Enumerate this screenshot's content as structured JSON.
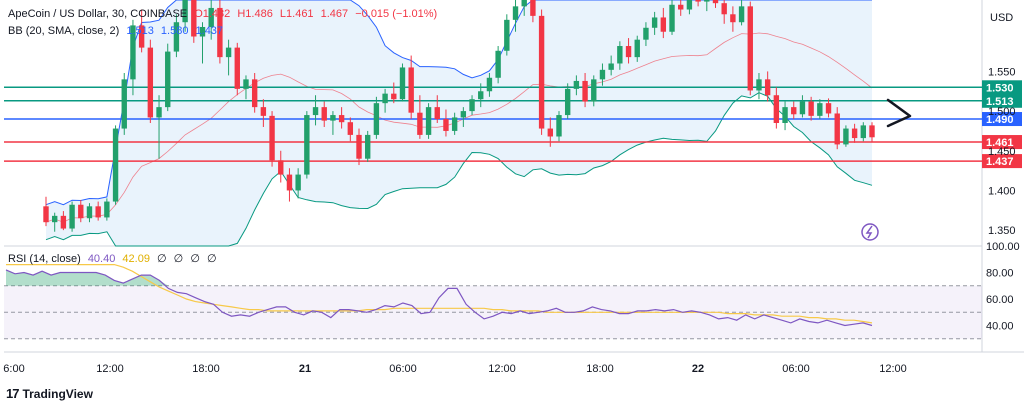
{
  "header": {
    "symbol": "ApeCoin / US Dollar, 30, COINBASE",
    "o": "O1.482",
    "h": "H1.486",
    "l": "L1.461",
    "c": "1.467",
    "change": "−0.015 (−1.01%)",
    "bb_label": "BB (20, SMA, close, 2)",
    "bb_values": [
      "1.513",
      "1.580",
      "1.437"
    ]
  },
  "rsi_header": {
    "label": "RSI (14, close)",
    "value": "40.40",
    "ma_value": "42.09",
    "empty": [
      "∅",
      "∅",
      "∅",
      "∅"
    ]
  },
  "currency_label": "USD",
  "brand": "TradingView",
  "colors": {
    "up": "#22a06b",
    "down": "#f23645",
    "bb_line": "#2962ff",
    "bb_fill": "#e3f0fb",
    "level_green": "#089981",
    "level_red": "#f23645",
    "level_blue": "#2962ff",
    "rsi_line": "#7e57c2",
    "rsi_ma": "#f7c948"
  },
  "chart_data": [
    {
      "type": "candlestick",
      "title": "ApeCoin / US Dollar, 30, COINBASE",
      "ylim": [
        1.33,
        1.64
      ],
      "y_ticks": [
        "1.550",
        "1.500",
        "1.450",
        "1.400",
        "1.350"
      ],
      "x_ticks": [
        "6:00",
        "12:00",
        "18:00",
        "21",
        "06:00",
        "12:00",
        "18:00",
        "22",
        "06:00",
        "12:00"
      ],
      "levels": [
        {
          "label": "1.530",
          "value": 1.53,
          "color": "#089981"
        },
        {
          "label": "1.513",
          "value": 1.513,
          "color": "#089981"
        },
        {
          "label": "1.490",
          "value": 1.49,
          "color": "#2962ff"
        },
        {
          "label": "1.461",
          "value": 1.461,
          "color": "#f23645"
        },
        {
          "label": "1.437",
          "value": 1.437,
          "color": "#f23645"
        }
      ],
      "candles": [
        [
          1.38,
          1.392,
          1.355,
          1.36
        ],
        [
          1.36,
          1.372,
          1.348,
          1.368
        ],
        [
          1.368,
          1.374,
          1.35,
          1.352
        ],
        [
          1.352,
          1.386,
          1.348,
          1.382
        ],
        [
          1.382,
          1.388,
          1.36,
          1.365
        ],
        [
          1.365,
          1.384,
          1.36,
          1.38
        ],
        [
          1.38,
          1.386,
          1.362,
          1.366
        ],
        [
          1.366,
          1.39,
          1.362,
          1.386
        ],
        [
          1.386,
          1.482,
          1.382,
          1.478
        ],
        [
          1.478,
          1.548,
          1.47,
          1.54
        ],
        [
          1.54,
          1.615,
          1.52,
          1.608
        ],
        [
          1.608,
          1.628,
          1.574,
          1.58
        ],
        [
          1.58,
          1.59,
          1.485,
          1.492
        ],
        [
          1.492,
          1.52,
          1.44,
          1.505
        ],
        [
          1.505,
          1.585,
          1.5,
          1.575
        ],
        [
          1.575,
          1.622,
          1.568,
          1.612
        ],
        [
          1.612,
          1.65,
          1.6,
          1.64
        ],
        [
          1.64,
          1.65,
          1.586,
          1.594
        ],
        [
          1.594,
          1.612,
          1.56,
          1.606
        ],
        [
          1.606,
          1.64,
          1.59,
          1.63
        ],
        [
          1.63,
          1.64,
          1.56,
          1.568
        ],
        [
          1.568,
          1.59,
          1.545,
          1.58
        ],
        [
          1.58,
          1.586,
          1.52,
          1.528
        ],
        [
          1.528,
          1.545,
          1.515,
          1.54
        ],
        [
          1.54,
          1.548,
          1.498,
          1.505
        ],
        [
          1.505,
          1.515,
          1.48,
          1.494
        ],
        [
          1.494,
          1.5,
          1.43,
          1.438
        ],
        [
          1.438,
          1.45,
          1.41,
          1.42
        ],
        [
          1.42,
          1.428,
          1.386,
          1.4
        ],
        [
          1.4,
          1.428,
          1.39,
          1.42
        ],
        [
          1.42,
          1.5,
          1.415,
          1.495
        ],
        [
          1.495,
          1.52,
          1.482,
          1.505
        ],
        [
          1.505,
          1.512,
          1.48,
          1.488
        ],
        [
          1.488,
          1.5,
          1.47,
          1.495
        ],
        [
          1.495,
          1.505,
          1.478,
          1.486
        ],
        [
          1.486,
          1.492,
          1.462,
          1.47
        ],
        [
          1.47,
          1.478,
          1.432,
          1.44
        ],
        [
          1.44,
          1.475,
          1.436,
          1.47
        ],
        [
          1.47,
          1.518,
          1.465,
          1.51
        ],
        [
          1.51,
          1.528,
          1.498,
          1.522
        ],
        [
          1.522,
          1.536,
          1.51,
          1.515
        ],
        [
          1.515,
          1.56,
          1.512,
          1.555
        ],
        [
          1.555,
          1.57,
          1.49,
          1.498
        ],
        [
          1.498,
          1.52,
          1.465,
          1.47
        ],
        [
          1.47,
          1.51,
          1.465,
          1.505
        ],
        [
          1.505,
          1.52,
          1.485,
          1.49
        ],
        [
          1.49,
          1.502,
          1.468,
          1.475
        ],
        [
          1.475,
          1.498,
          1.47,
          1.492
        ],
        [
          1.492,
          1.505,
          1.48,
          1.5
        ],
        [
          1.5,
          1.52,
          1.495,
          1.515
        ],
        [
          1.515,
          1.535,
          1.505,
          1.525
        ],
        [
          1.525,
          1.548,
          1.518,
          1.542
        ],
        [
          1.542,
          1.582,
          1.535,
          1.576
        ],
        [
          1.576,
          1.622,
          1.57,
          1.615
        ],
        [
          1.615,
          1.64,
          1.6,
          1.632
        ],
        [
          1.632,
          1.65,
          1.62,
          1.642
        ],
        [
          1.642,
          1.652,
          1.612,
          1.62
        ],
        [
          1.62,
          1.628,
          1.47,
          1.478
        ],
        [
          1.478,
          1.492,
          1.455,
          1.468
        ],
        [
          1.468,
          1.5,
          1.462,
          1.495
        ],
        [
          1.495,
          1.535,
          1.49,
          1.528
        ],
        [
          1.528,
          1.545,
          1.52,
          1.538
        ],
        [
          1.538,
          1.548,
          1.505,
          1.512
        ],
        [
          1.512,
          1.545,
          1.506,
          1.54
        ],
        [
          1.54,
          1.56,
          1.532,
          1.552
        ],
        [
          1.552,
          1.57,
          1.545,
          1.56
        ],
        [
          1.56,
          1.588,
          1.552,
          1.582
        ],
        [
          1.582,
          1.592,
          1.56,
          1.568
        ],
        [
          1.568,
          1.595,
          1.562,
          1.59
        ],
        [
          1.59,
          1.612,
          1.582,
          1.605
        ],
        [
          1.605,
          1.625,
          1.596,
          1.618
        ],
        [
          1.618,
          1.63,
          1.592,
          1.6
        ],
        [
          1.6,
          1.64,
          1.596,
          1.634
        ],
        [
          1.634,
          1.648,
          1.62,
          1.628
        ],
        [
          1.628,
          1.65,
          1.622,
          1.642
        ],
        [
          1.642,
          1.654,
          1.632,
          1.638
        ],
        [
          1.638,
          1.65,
          1.626,
          1.644
        ],
        [
          1.644,
          1.652,
          1.63,
          1.636
        ],
        [
          1.636,
          1.648,
          1.61,
          1.622
        ],
        [
          1.622,
          1.632,
          1.6,
          1.612
        ],
        [
          1.612,
          1.64,
          1.608,
          1.632
        ],
        [
          1.632,
          1.638,
          1.52,
          1.526
        ],
        [
          1.526,
          1.548,
          1.515,
          1.54
        ],
        [
          1.54,
          1.55,
          1.512,
          1.52
        ],
        [
          1.52,
          1.53,
          1.478,
          1.485
        ],
        [
          1.485,
          1.512,
          1.476,
          1.505
        ],
        [
          1.505,
          1.512,
          1.49,
          1.496
        ],
        [
          1.496,
          1.52,
          1.492,
          1.512
        ],
        [
          1.512,
          1.518,
          1.488,
          1.494
        ],
        [
          1.494,
          1.515,
          1.49,
          1.51
        ],
        [
          1.51,
          1.516,
          1.492,
          1.497
        ],
        [
          1.497,
          1.505,
          1.452,
          1.458
        ],
        [
          1.458,
          1.482,
          1.455,
          1.478
        ],
        [
          1.478,
          1.484,
          1.46,
          1.466
        ],
        [
          1.466,
          1.486,
          1.462,
          1.482
        ],
        [
          1.482,
          1.486,
          1.461,
          1.467
        ]
      ]
    },
    {
      "type": "line",
      "title": "RSI (14, close)",
      "ylim": [
        20,
        100
      ],
      "y_ticks": [
        "100.00",
        "80.00",
        "60.00",
        "40.00"
      ],
      "bands": [
        70,
        50,
        30
      ],
      "series": [
        {
          "name": "RSI",
          "values": [
            82,
            79,
            80,
            78,
            81,
            78,
            80,
            80,
            80,
            80,
            80,
            78,
            74,
            72,
            75,
            78,
            78,
            74,
            68,
            65,
            64,
            61,
            58,
            56,
            50,
            47,
            48,
            47,
            50,
            52,
            54,
            54,
            50,
            48,
            51,
            50,
            46,
            52,
            52,
            51,
            50,
            52,
            55,
            54,
            57,
            55,
            49,
            50,
            61,
            68,
            68,
            56,
            50,
            45,
            47,
            50,
            49,
            51,
            49,
            50,
            51,
            53,
            50,
            50,
            51,
            54,
            52,
            51,
            49,
            49,
            51,
            51,
            52,
            51,
            52,
            50,
            51,
            50,
            48,
            45,
            46,
            44,
            48,
            45,
            48,
            46,
            44,
            42,
            45,
            43,
            42,
            44,
            42,
            40,
            41,
            42,
            40
          ]
        },
        {
          "name": "RSI-based MA",
          "values": [
            86,
            86,
            86,
            86,
            86,
            86,
            86,
            86,
            86,
            86,
            86,
            86,
            86,
            84,
            81,
            77,
            73,
            69,
            66,
            63,
            60,
            58,
            57,
            56,
            55,
            54,
            53,
            52,
            52,
            51,
            51,
            51,
            51,
            51,
            51,
            51,
            51,
            51,
            51,
            51,
            52,
            52,
            52,
            53,
            53,
            53,
            53,
            53,
            53,
            53,
            53,
            53,
            53,
            53,
            52,
            52,
            51,
            51,
            51,
            51,
            50,
            50,
            50,
            50,
            50,
            50,
            50,
            50,
            50,
            50,
            50,
            50,
            50,
            50,
            50,
            50,
            50,
            50,
            50,
            50,
            49,
            49,
            49,
            48,
            48,
            48,
            47,
            47,
            47,
            46,
            46,
            45,
            45,
            44,
            44,
            43,
            42
          ]
        }
      ]
    }
  ]
}
